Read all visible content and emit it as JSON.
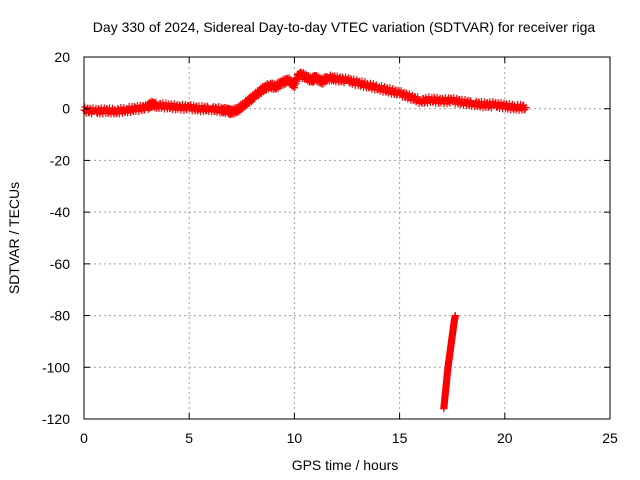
{
  "chart_data": {
    "type": "scatter",
    "title": "Day 330 of 2024, Sidereal Day-to-day VTEC variation (SDTVAR) for receiver riga",
    "xlabel": "GPS time / hours",
    "ylabel": "SDTVAR / TECUs",
    "xlim": [
      0,
      25
    ],
    "ylim": [
      -120,
      20
    ],
    "xticks": [
      0,
      5,
      10,
      15,
      20,
      25
    ],
    "yticks": [
      -120,
      -100,
      -80,
      -60,
      -40,
      -20,
      0,
      20
    ],
    "grid": true,
    "marker": "plus",
    "series": [
      {
        "color": "#ff0000",
        "points": [
          [
            0.0,
            -0.5
          ],
          [
            0.5,
            -1.0
          ],
          [
            1.0,
            -0.8
          ],
          [
            1.5,
            -1.0
          ],
          [
            2.0,
            -0.5
          ],
          [
            2.5,
            0.0
          ],
          [
            3.0,
            0.5
          ],
          [
            3.2,
            1.8
          ],
          [
            3.5,
            1.2
          ],
          [
            4.0,
            1.0
          ],
          [
            4.5,
            0.5
          ],
          [
            5.0,
            0.5
          ],
          [
            5.5,
            0.0
          ],
          [
            6.0,
            0.0
          ],
          [
            6.5,
            -0.5
          ],
          [
            6.8,
            -0.8
          ],
          [
            7.0,
            -1.2
          ],
          [
            7.3,
            -0.5
          ],
          [
            7.6,
            1.5
          ],
          [
            7.9,
            3.5
          ],
          [
            8.2,
            5.5
          ],
          [
            8.5,
            7.5
          ],
          [
            8.8,
            9.0
          ],
          [
            9.1,
            8.5
          ],
          [
            9.4,
            10.0
          ],
          [
            9.7,
            11.0
          ],
          [
            10.0,
            9.0
          ],
          [
            10.2,
            13.5
          ],
          [
            10.5,
            12.5
          ],
          [
            10.8,
            11.0
          ],
          [
            11.0,
            12.0
          ],
          [
            11.3,
            10.5
          ],
          [
            11.6,
            12.0
          ],
          [
            12.0,
            11.5
          ],
          [
            12.5,
            11.0
          ],
          [
            13.0,
            10.0
          ],
          [
            13.5,
            9.0
          ],
          [
            14.0,
            8.0
          ],
          [
            14.5,
            7.0
          ],
          [
            15.0,
            6.0
          ],
          [
            15.5,
            4.5
          ],
          [
            16.0,
            3.0
          ],
          [
            16.5,
            3.5
          ],
          [
            17.0,
            3.0
          ],
          [
            17.5,
            3.2
          ],
          [
            18.0,
            2.5
          ],
          [
            18.5,
            2.0
          ],
          [
            19.0,
            1.5
          ],
          [
            19.5,
            1.5
          ],
          [
            20.0,
            1.0
          ],
          [
            20.5,
            0.5
          ],
          [
            21.0,
            0.5
          ]
        ]
      },
      {
        "color": "#ff0000",
        "points": [
          [
            17.1,
            -116
          ],
          [
            17.15,
            -112
          ],
          [
            17.2,
            -108
          ],
          [
            17.25,
            -104
          ],
          [
            17.3,
            -100
          ],
          [
            17.35,
            -97
          ],
          [
            17.4,
            -94
          ],
          [
            17.45,
            -91
          ],
          [
            17.5,
            -88
          ],
          [
            17.55,
            -85
          ],
          [
            17.6,
            -82
          ],
          [
            17.65,
            -80
          ]
        ]
      }
    ]
  }
}
